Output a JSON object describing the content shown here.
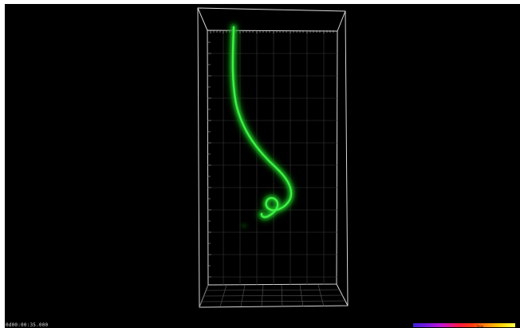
{
  "viewer": {
    "timestamp": "0d00:00:35.000",
    "time_colorbar_label": "Time",
    "background_color": "#000000",
    "frame_color": "#ffffff",
    "filament_color": "#23d52a"
  }
}
